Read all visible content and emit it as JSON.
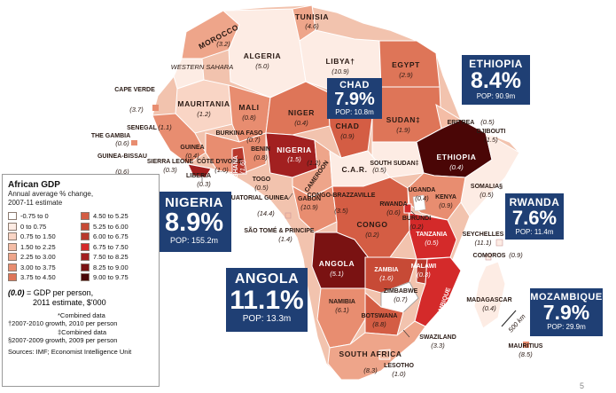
{
  "legend": {
    "title": "African GDP",
    "subtitle_1": "Annual average % change,",
    "subtitle_2": "2007-11 estimate",
    "bins": [
      {
        "label": "-0.75 to 0",
        "color": "#ffffff"
      },
      {
        "label": "0 to 0.75",
        "color": "#fdece4"
      },
      {
        "label": "0.75 to 1.50",
        "color": "#f9d5c5"
      },
      {
        "label": "1.50 to 2.25",
        "color": "#f4bda6"
      },
      {
        "label": "2.25 to 3.00",
        "color": "#eea58a"
      },
      {
        "label": "3.00 to 3.75",
        "color": "#e88d70"
      },
      {
        "label": "3.75 to 4.50",
        "color": "#de7558"
      },
      {
        "label": "4.50 to 5.25",
        "color": "#d45d44"
      },
      {
        "label": "5.25 to 6.00",
        "color": "#c74a36"
      },
      {
        "label": "6.00 to 6.75",
        "color": "#b8382c"
      },
      {
        "label": "6.75 to 7.50",
        "color": "#d42a2a"
      },
      {
        "label": "7.50 to 8.25",
        "color": "#a22020"
      },
      {
        "label": "8.25 to 9.00",
        "color": "#7a1212"
      },
      {
        "label": "9.00 to 9.75",
        "color": "#4a0606"
      }
    ],
    "gdp_note_key": "(0.0)",
    "gdp_note_text": "= GDP per person,",
    "gdp_note_text_2": "2011 estimate, $'000",
    "footnotes": [
      "*Combined data",
      "†2007-2010 growth, 2010 per person",
      "‡Combined data",
      "§2007-2009 growth, 2009 per person"
    ],
    "sources": "Sources: IMF; Economist Intelligence Unit"
  },
  "callouts": [
    {
      "name": "CHAD",
      "value": "7.9%",
      "pop": "POP: 10.8m"
    },
    {
      "name": "ETHIOPIA",
      "value": "8.4%",
      "pop": "POP: 90.9m"
    },
    {
      "name": "NIGERIA",
      "value": "8.9%",
      "pop": "POP: 155.2m"
    },
    {
      "name": "RWANDA",
      "value": "7.6%",
      "pop": "POP: 11.4m"
    },
    {
      "name": "ANGOLA",
      "value": "11.1%",
      "pop": "POP: 13.3m"
    },
    {
      "name": "MOZAMBIQUE",
      "value": "7.9%",
      "pop": "POP: 29.9m"
    }
  ],
  "countries": [
    {
      "name": "TUNISIA",
      "gdp": "(4.6)"
    },
    {
      "name": "MOROCCO",
      "gdp": "(3.2)"
    },
    {
      "name": "ALGERIA",
      "gdp": "(5.0)"
    },
    {
      "name": "LIBYA†",
      "gdp": "(10.9)"
    },
    {
      "name": "EGYPT",
      "gdp": "(2.9)"
    },
    {
      "name": "WESTERN SAHARA",
      "gdp": ""
    },
    {
      "name": "MAURITANIA",
      "gdp": "(1.2)"
    },
    {
      "name": "MALI",
      "gdp": "(0.8)"
    },
    {
      "name": "NIGER",
      "gdp": "(0.4)"
    },
    {
      "name": "CHAD",
      "gdp": "(0.9)"
    },
    {
      "name": "SUDAN‡",
      "gdp": "(1.9)"
    },
    {
      "name": "ERITREA",
      "gdp": "(0.5)"
    },
    {
      "name": "DJIBOUTI",
      "gdp": "(1.5)"
    },
    {
      "name": "ETHIOPIA",
      "gdp": "(0.4)"
    },
    {
      "name": "SOMALIA§",
      "gdp": "(0.5)"
    },
    {
      "name": "CAPE VERDE",
      "gdp": "(3.7)"
    },
    {
      "name": "SENEGAL",
      "gdp": "(1.1)"
    },
    {
      "name": "THE GAMBIA",
      "gdp": "(0.6)"
    },
    {
      "name": "GUINEA-BISSAU",
      "gdp": "(0.6)"
    },
    {
      "name": "GUINEA",
      "gdp": "(0.4)"
    },
    {
      "name": "SIERRA LEONE",
      "gdp": "(0.3)"
    },
    {
      "name": "LIBERIA",
      "gdp": "(0.3)"
    },
    {
      "name": "CÔTE D'IVOIRE",
      "gdp": "(1.0)"
    },
    {
      "name": "BURKINA FASO",
      "gdp": "(0.7)"
    },
    {
      "name": "GHANA",
      "gdp": "(1.6)"
    },
    {
      "name": "TOGO",
      "gdp": "(0.5)"
    },
    {
      "name": "BENIN",
      "gdp": "(0.8)"
    },
    {
      "name": "NIGERIA",
      "gdp": "(1.5)"
    },
    {
      "name": "CAMEROON",
      "gdp": "(1.2)"
    },
    {
      "name": "C.A.R.",
      "gdp": "(0.5)"
    },
    {
      "name": "SOUTH SUDAN‡",
      "gdp": ""
    },
    {
      "name": "EQUATORIAL GUINEA",
      "gdp": "(14.4)"
    },
    {
      "name": "GABON",
      "gdp": "(10.9)"
    },
    {
      "name": "CONGO-BRAZZAVILLE",
      "gdp": "(3.5)"
    },
    {
      "name": "SÃO TOMÉ & PRINCIPE",
      "gdp": "(1.4)"
    },
    {
      "name": "CONGO",
      "gdp": "(0.2)"
    },
    {
      "name": "UGANDA",
      "gdp": "(0.4)"
    },
    {
      "name": "KENYA",
      "gdp": "(0.9)"
    },
    {
      "name": "RWANDA",
      "gdp": "(0.6)"
    },
    {
      "name": "BURUNDI",
      "gdp": "(0.2)"
    },
    {
      "name": "TANZANIA",
      "gdp": "(0.5)"
    },
    {
      "name": "SEYCHELLES",
      "gdp": "(11.1)"
    },
    {
      "name": "COMOROS",
      "gdp": "(0.9)"
    },
    {
      "name": "ANGOLA",
      "gdp": "(5.1)"
    },
    {
      "name": "ZAMBIA",
      "gdp": "(1.6)"
    },
    {
      "name": "MALAWI",
      "gdp": "(0.3)"
    },
    {
      "name": "MOZAMBIQUE",
      "gdp": ""
    },
    {
      "name": "ZIMBABWE",
      "gdp": "(0.7)"
    },
    {
      "name": "NAMIBIA",
      "gdp": "(6.1)"
    },
    {
      "name": "BOTSWANA",
      "gdp": "(8.8)"
    },
    {
      "name": "MADAGASCAR",
      "gdp": "(0.4)"
    },
    {
      "name": "MAURITIUS",
      "gdp": "(8.5)"
    },
    {
      "name": "SWAZILAND",
      "gdp": "(3.3)"
    },
    {
      "name": "SOUTH AFRICA",
      "gdp": "(8.3)"
    },
    {
      "name": "LESOTHO",
      "gdp": "(1.0)"
    }
  ],
  "scale_label": "500 km",
  "page_number": "5"
}
